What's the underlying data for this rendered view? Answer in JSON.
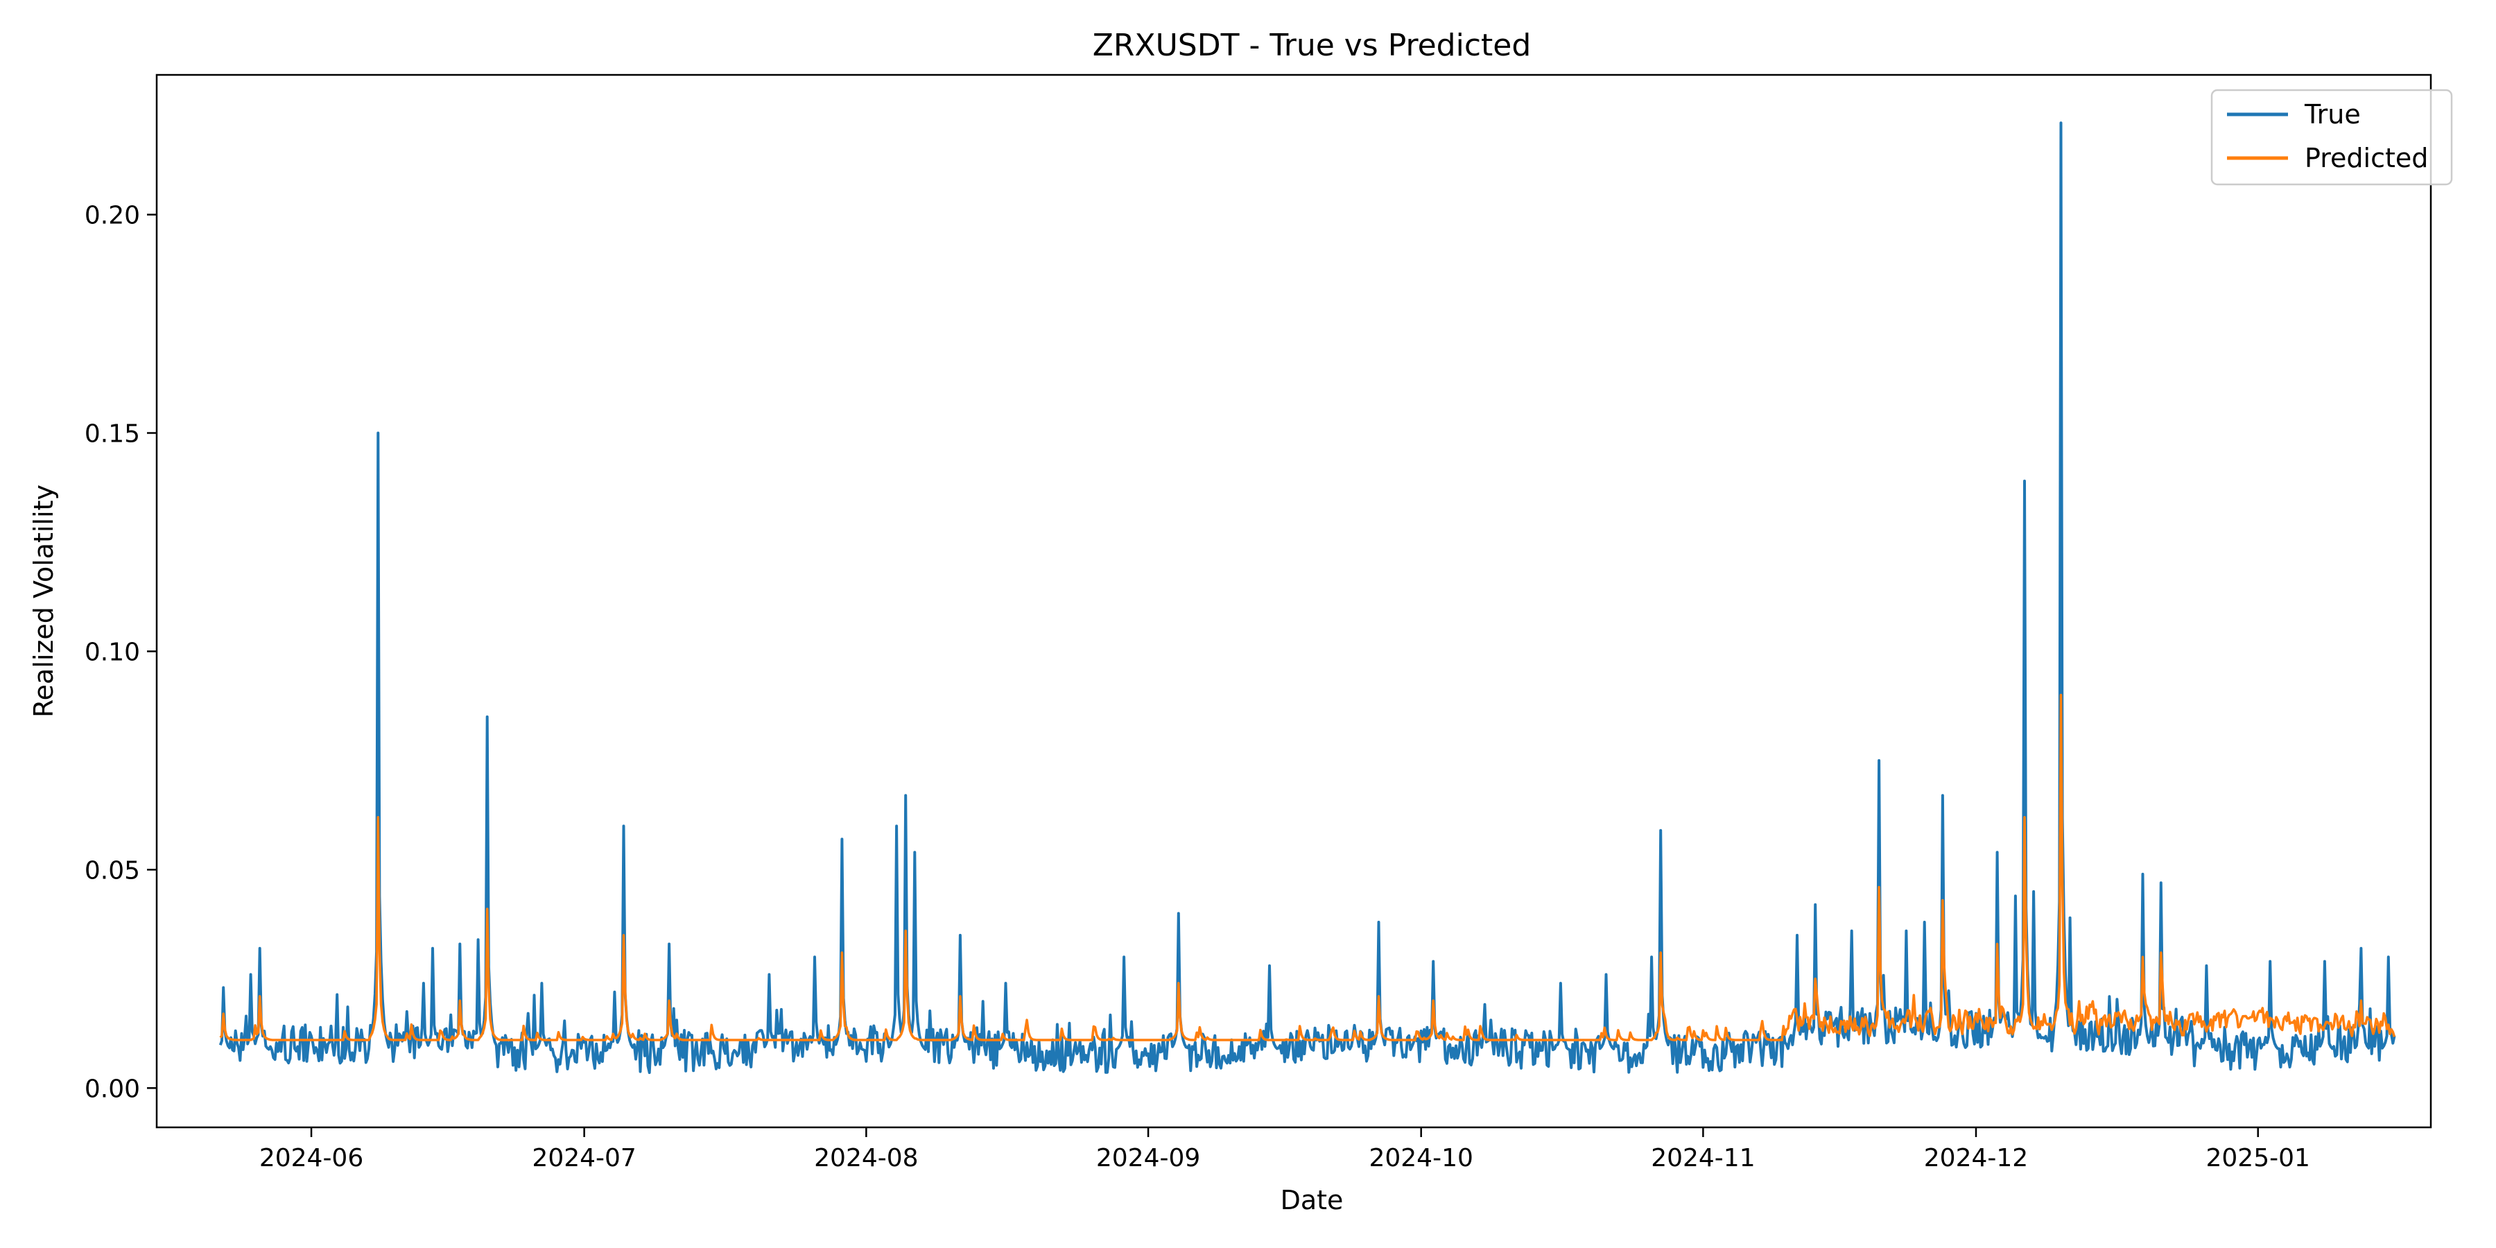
{
  "chart_data": {
    "type": "line",
    "title": "ZRXUSDT - True vs Predicted",
    "xlabel": "Date",
    "ylabel": "Realized Volatility",
    "xlim": [
      "2024-05-15",
      "2025-01-20"
    ],
    "ylim": [
      -0.009,
      0.232
    ],
    "x_ticks": [
      "2024-06",
      "2024-07",
      "2024-08",
      "2024-09",
      "2024-10",
      "2024-11",
      "2024-12",
      "2025-01"
    ],
    "y_ticks": [
      "0.00",
      "0.05",
      "0.10",
      "0.15",
      "0.20"
    ],
    "grid": false,
    "legend_position": "top-right",
    "date_range": [
      "2024-05-22",
      "2025-01-16"
    ],
    "series": [
      {
        "name": "True",
        "color": "#1f77b4",
        "baseline": 0.0085,
        "peaks": [
          [
            "2024-05-22",
            0.023
          ],
          [
            "2024-05-25",
            0.026
          ],
          [
            "2024-05-26",
            0.032
          ],
          [
            "2024-06-08",
            0.15
          ],
          [
            "2024-06-13",
            0.024
          ],
          [
            "2024-06-14",
            0.032
          ],
          [
            "2024-06-17",
            0.033
          ],
          [
            "2024-06-19",
            0.034
          ],
          [
            "2024-06-20",
            0.085
          ],
          [
            "2024-06-26",
            0.024
          ],
          [
            "2024-07-04",
            0.022
          ],
          [
            "2024-07-05",
            0.06
          ],
          [
            "2024-07-10",
            0.033
          ],
          [
            "2024-07-21",
            0.026
          ],
          [
            "2024-07-26",
            0.03
          ],
          [
            "2024-07-29",
            0.057
          ],
          [
            "2024-08-04",
            0.06
          ],
          [
            "2024-08-05",
            0.067
          ],
          [
            "2024-08-06",
            0.054
          ],
          [
            "2024-08-11",
            0.035
          ],
          [
            "2024-08-16",
            0.024
          ],
          [
            "2024-08-29",
            0.03
          ],
          [
            "2024-09-04",
            0.04
          ],
          [
            "2024-09-14",
            0.028
          ],
          [
            "2024-09-26",
            0.038
          ],
          [
            "2024-10-02",
            0.029
          ],
          [
            "2024-10-16",
            0.024
          ],
          [
            "2024-10-21",
            0.026
          ],
          [
            "2024-10-26",
            0.03
          ],
          [
            "2024-10-27",
            0.059
          ],
          [
            "2024-11-11",
            0.035
          ],
          [
            "2024-11-13",
            0.042
          ],
          [
            "2024-11-17",
            0.036
          ],
          [
            "2024-11-20",
            0.075
          ],
          [
            "2024-11-23",
            0.036
          ],
          [
            "2024-11-25",
            0.038
          ],
          [
            "2024-11-27",
            0.067
          ],
          [
            "2024-12-03",
            0.054
          ],
          [
            "2024-12-05",
            0.044
          ],
          [
            "2024-12-06",
            0.139
          ],
          [
            "2024-12-07",
            0.045
          ],
          [
            "2024-12-10",
            0.221
          ],
          [
            "2024-12-11",
            0.039
          ],
          [
            "2024-12-19",
            0.049
          ],
          [
            "2024-12-21",
            0.047
          ],
          [
            "2024-12-26",
            0.028
          ],
          [
            "2025-01-02",
            0.029
          ],
          [
            "2025-01-08",
            0.029
          ],
          [
            "2025-01-12",
            0.032
          ],
          [
            "2025-01-15",
            0.03
          ]
        ]
      },
      {
        "name": "Predicted",
        "color": "#ff7f0e",
        "baseline": 0.011,
        "peaks": [
          [
            "2024-05-22",
            0.017
          ],
          [
            "2024-05-26",
            0.021
          ],
          [
            "2024-06-08",
            0.062
          ],
          [
            "2024-06-17",
            0.02
          ],
          [
            "2024-06-20",
            0.041
          ],
          [
            "2024-07-05",
            0.035
          ],
          [
            "2024-07-10",
            0.02
          ],
          [
            "2024-07-29",
            0.031
          ],
          [
            "2024-08-05",
            0.036
          ],
          [
            "2024-08-11",
            0.021
          ],
          [
            "2024-09-04",
            0.024
          ],
          [
            "2024-09-26",
            0.021
          ],
          [
            "2024-10-02",
            0.02
          ],
          [
            "2024-10-27",
            0.031
          ],
          [
            "2024-11-13",
            0.025
          ],
          [
            "2024-11-20",
            0.046
          ],
          [
            "2024-11-27",
            0.043
          ],
          [
            "2024-12-03",
            0.033
          ],
          [
            "2024-12-06",
            0.062
          ],
          [
            "2024-12-10",
            0.09
          ],
          [
            "2024-12-19",
            0.03
          ],
          [
            "2024-12-21",
            0.031
          ],
          [
            "2025-01-12",
            0.02
          ]
        ]
      }
    ]
  }
}
